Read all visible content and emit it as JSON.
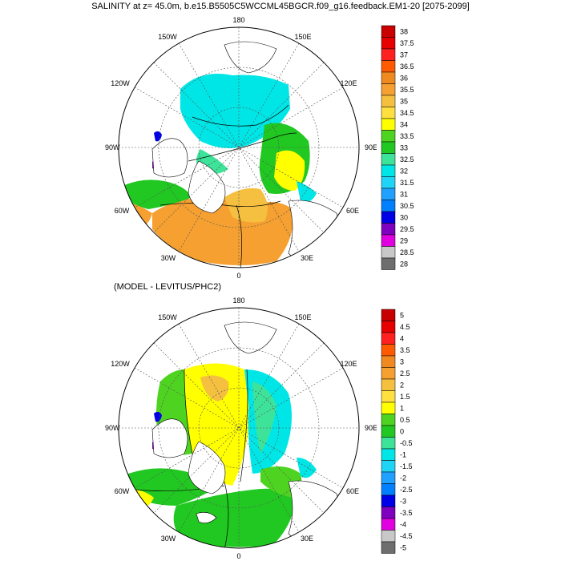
{
  "title": "SALINITY at z=  45.0m, b.e15.B5505C5WCCML45BGCR.f09_g16.feedback.EM1-20 [2075-2099]",
  "subtitle": "(MODEL - LEVITUS/PHC2)",
  "lon_labels": [
    "180",
    "150E",
    "120E",
    "90E",
    "60E",
    "30E",
    "0",
    "30W",
    "60W",
    "90W",
    "120W",
    "150W"
  ],
  "colors": {
    "land": "#ffffff",
    "coast": "#000000"
  },
  "colorbar_top": {
    "labels": [
      "38",
      "37.5",
      "37",
      "36.5",
      "36",
      "35.5",
      "35",
      "34.5",
      "34",
      "33.5",
      "33",
      "32.5",
      "32",
      "31.5",
      "31",
      "30.5",
      "30",
      "29.5",
      "29",
      "28.5",
      "28"
    ],
    "colors": [
      "#c80000",
      "#e60000",
      "#ff2020",
      "#ff5a00",
      "#f08a20",
      "#f5a030",
      "#f5c040",
      "#ffe040",
      "#ffff00",
      "#4ed320",
      "#21c821",
      "#3ee39a",
      "#00e6e6",
      "#20d4f5",
      "#20a0ff",
      "#0080ff",
      "#0000e6",
      "#8000c0",
      "#e000e0",
      "#c8c8c8",
      "#6e6e6e"
    ]
  },
  "colorbar_bottom": {
    "labels": [
      "5",
      "4.5",
      "4",
      "3.5",
      "3",
      "2.5",
      "2",
      "1.5",
      "1",
      "0.5",
      "0",
      "-0.5",
      "-1",
      "-1.5",
      "-2",
      "-2.5",
      "-3",
      "-3.5",
      "-4",
      "-4.5",
      "-5"
    ],
    "colors": [
      "#c80000",
      "#e60000",
      "#ff2020",
      "#ff5a00",
      "#f08a20",
      "#f5a030",
      "#f5c040",
      "#ffe040",
      "#ffff00",
      "#4ed320",
      "#21c821",
      "#3ee39a",
      "#00e6e6",
      "#20d4f5",
      "#20a0ff",
      "#0080ff",
      "#0000e6",
      "#8000c0",
      "#e000e0",
      "#c8c8c8",
      "#6e6e6e"
    ]
  }
}
